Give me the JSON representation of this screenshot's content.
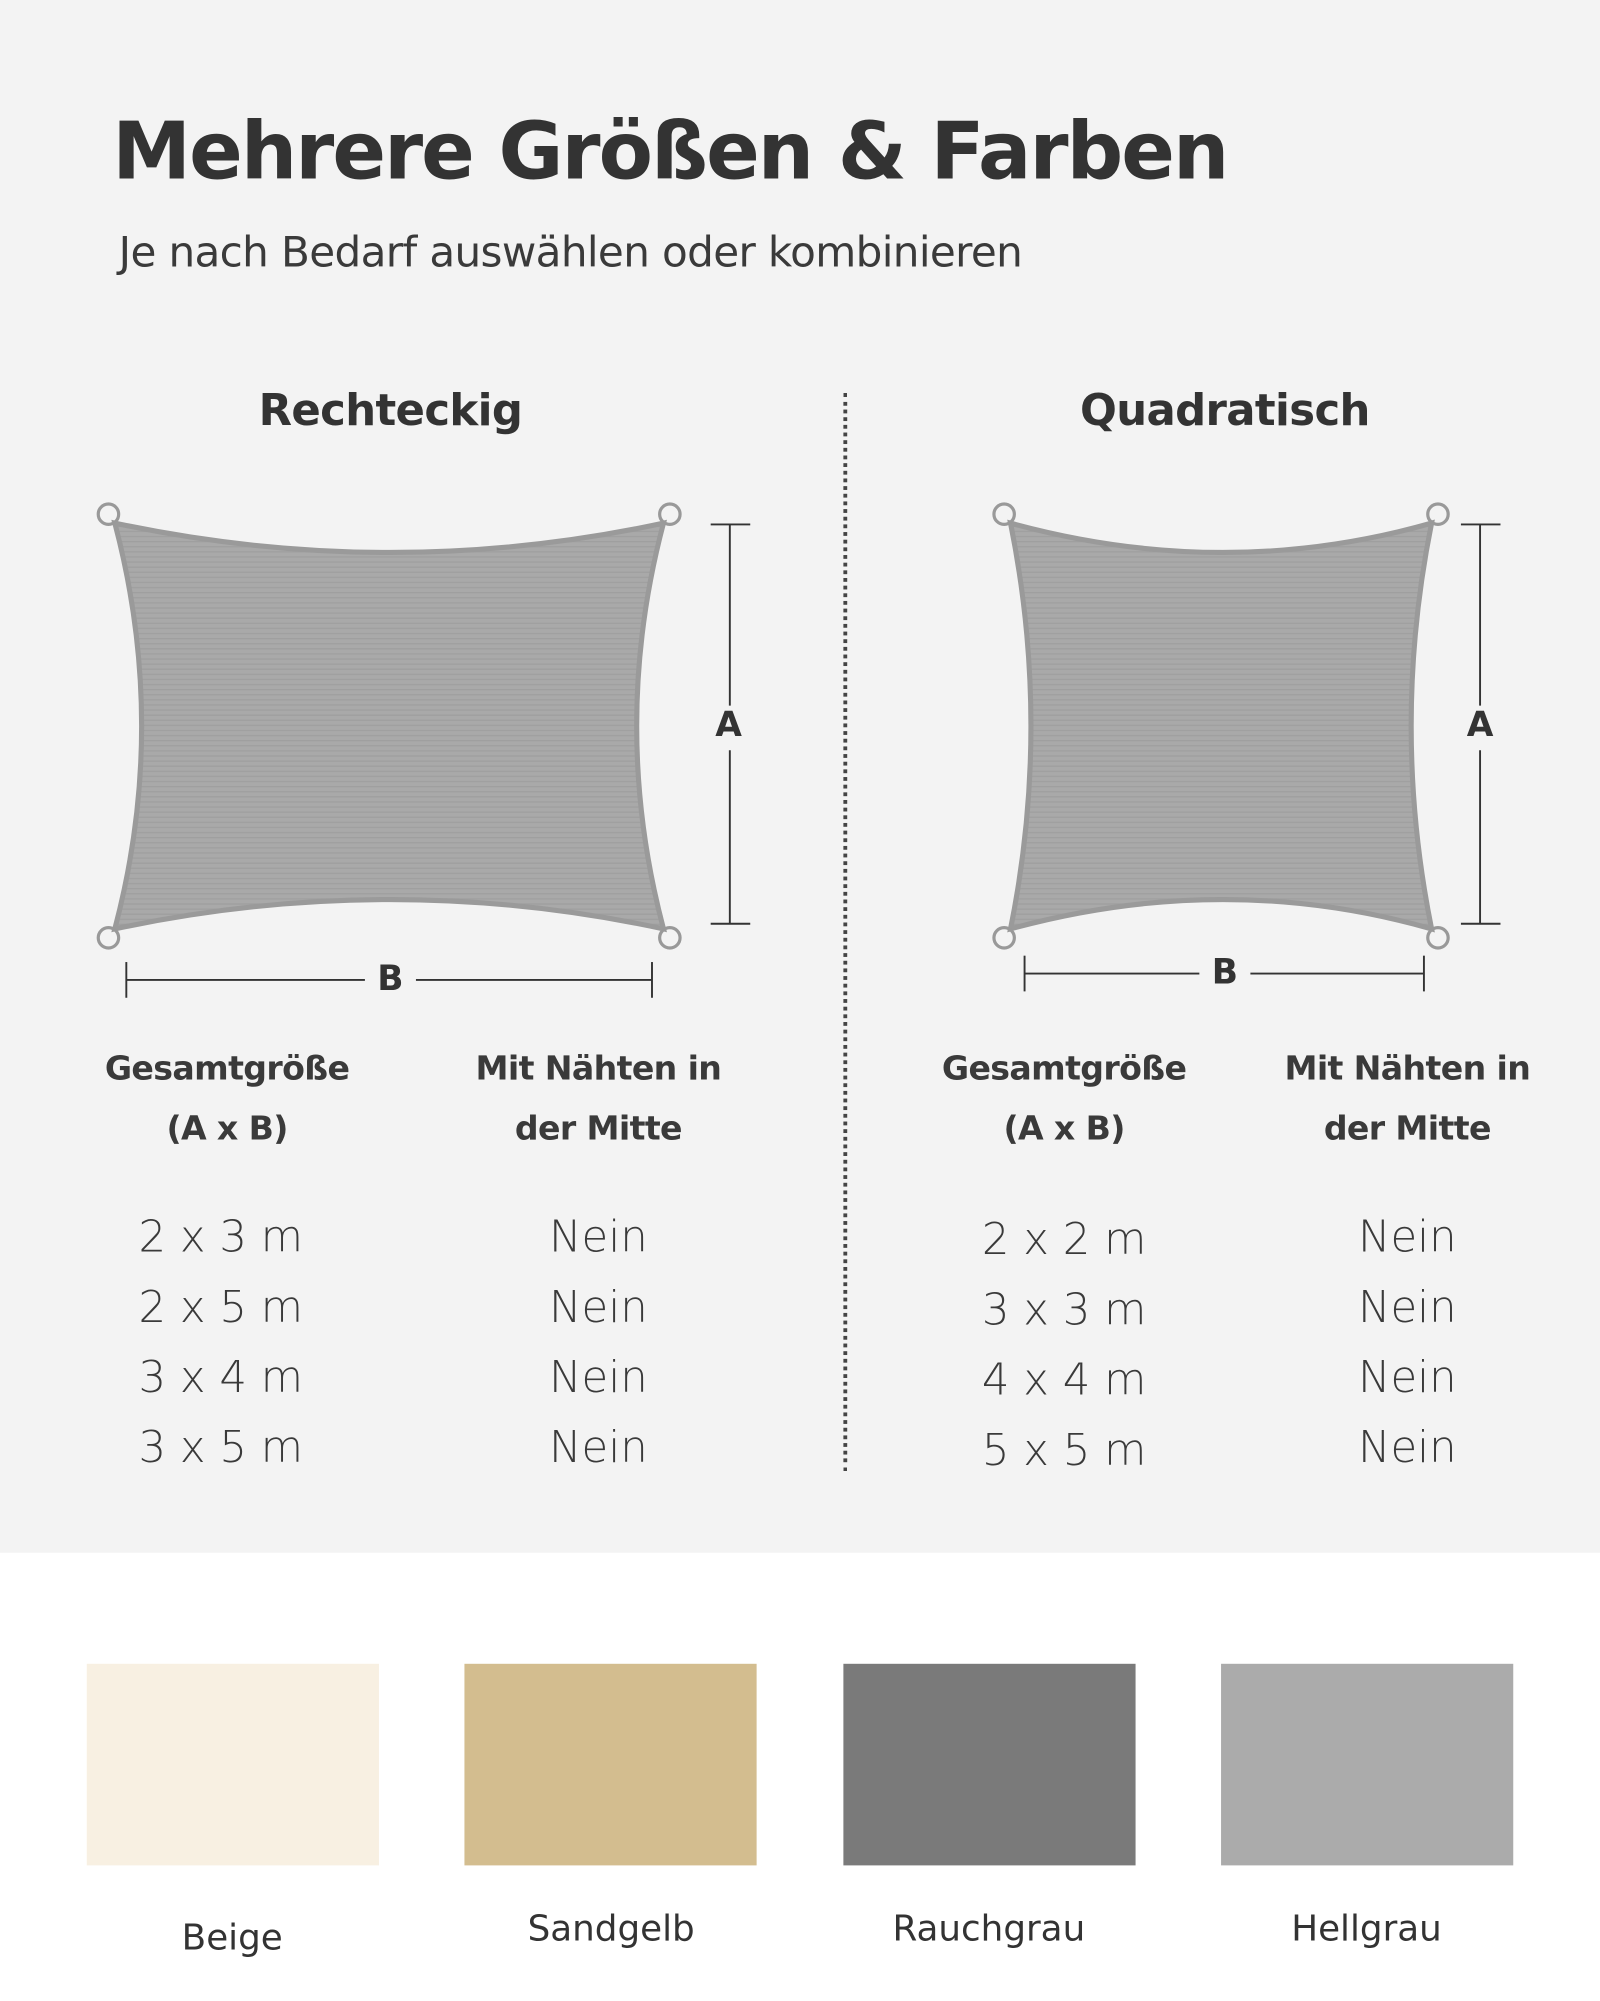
{
  "title": "Mehrere Größen & Farben",
  "subtitle": "Je nach Bedarf auswählen oder kombinieren",
  "sections": [
    {
      "name": "Rechteckig",
      "dim_a": "A",
      "dim_b": "B",
      "headers": [
        "Gesamtgröße",
        "(A x B)",
        "Mit Nähten in",
        "der Mitte"
      ],
      "rows": [
        {
          "size": "2 x 3 m",
          "seams": "Nein"
        },
        {
          "size": "2 x 5 m",
          "seams": "Nein"
        },
        {
          "size": "3 x 4 m",
          "seams": "Nein"
        },
        {
          "size": "3 x 5 m",
          "seams": "Nein"
        }
      ]
    },
    {
      "name": "Quadratisch",
      "dim_a": "A",
      "dim_b": "B",
      "headers": [
        "Gesamtgröße",
        "(A x B)",
        "Mit Nähten in",
        "der Mitte"
      ],
      "rows": [
        {
          "size": "2 x 2 m",
          "seams": "Nein"
        },
        {
          "size": "3 x 3 m",
          "seams": "Nein"
        },
        {
          "size": "4 x 4 m",
          "seams": "Nein"
        },
        {
          "size": "5 x 5 m",
          "seams": "Nein"
        }
      ]
    }
  ],
  "colors": [
    {
      "label": "Beige",
      "hex": "#f8f0e2"
    },
    {
      "label": "Sandgelb",
      "hex": "#d3bd8f"
    },
    {
      "label": "Rauchgrau",
      "hex": "#7a7a7a"
    },
    {
      "label": "Hellgrau",
      "hex": "#ababab"
    }
  ],
  "shade_sail_color": "#a9a9a9"
}
